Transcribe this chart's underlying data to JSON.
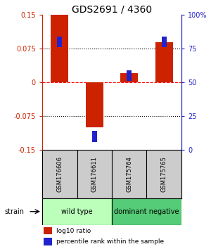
{
  "title": "GDS2691 / 4360",
  "samples": [
    "GSM176606",
    "GSM176611",
    "GSM175764",
    "GSM175765"
  ],
  "log10_ratio": [
    0.15,
    -0.1,
    0.02,
    0.09
  ],
  "percentile_rank": [
    80,
    10,
    55,
    80
  ],
  "ylim_left": [
    -0.15,
    0.15
  ],
  "ylim_right": [
    0,
    100
  ],
  "yticks_left": [
    -0.15,
    -0.075,
    0,
    0.075,
    0.15
  ],
  "yticks_right": [
    0,
    25,
    50,
    75,
    100
  ],
  "ytick_labels_right": [
    "0",
    "25",
    "50",
    "75",
    "100%"
  ],
  "hlines": [
    0.075,
    0,
    -0.075
  ],
  "hline_styles": [
    "dotted",
    "dashed",
    "dotted"
  ],
  "hline_colors": [
    "black",
    "red",
    "black"
  ],
  "bar_color_red": "#cc2200",
  "bar_color_blue": "#2222cc",
  "groups": [
    {
      "label": "wild type",
      "samples": [
        0,
        1
      ],
      "color": "#bbffbb"
    },
    {
      "label": "dominant negative",
      "samples": [
        2,
        3
      ],
      "color": "#55cc77"
    }
  ],
  "sample_box_color": "#cccccc",
  "legend_red_label": "log10 ratio",
  "legend_blue_label": "percentile rank within the sample",
  "strain_label": "strain",
  "left_axis_color": "#cc2200",
  "right_axis_color": "#2222cc",
  "fig_width": 3.0,
  "fig_height": 3.54,
  "dpi": 100
}
